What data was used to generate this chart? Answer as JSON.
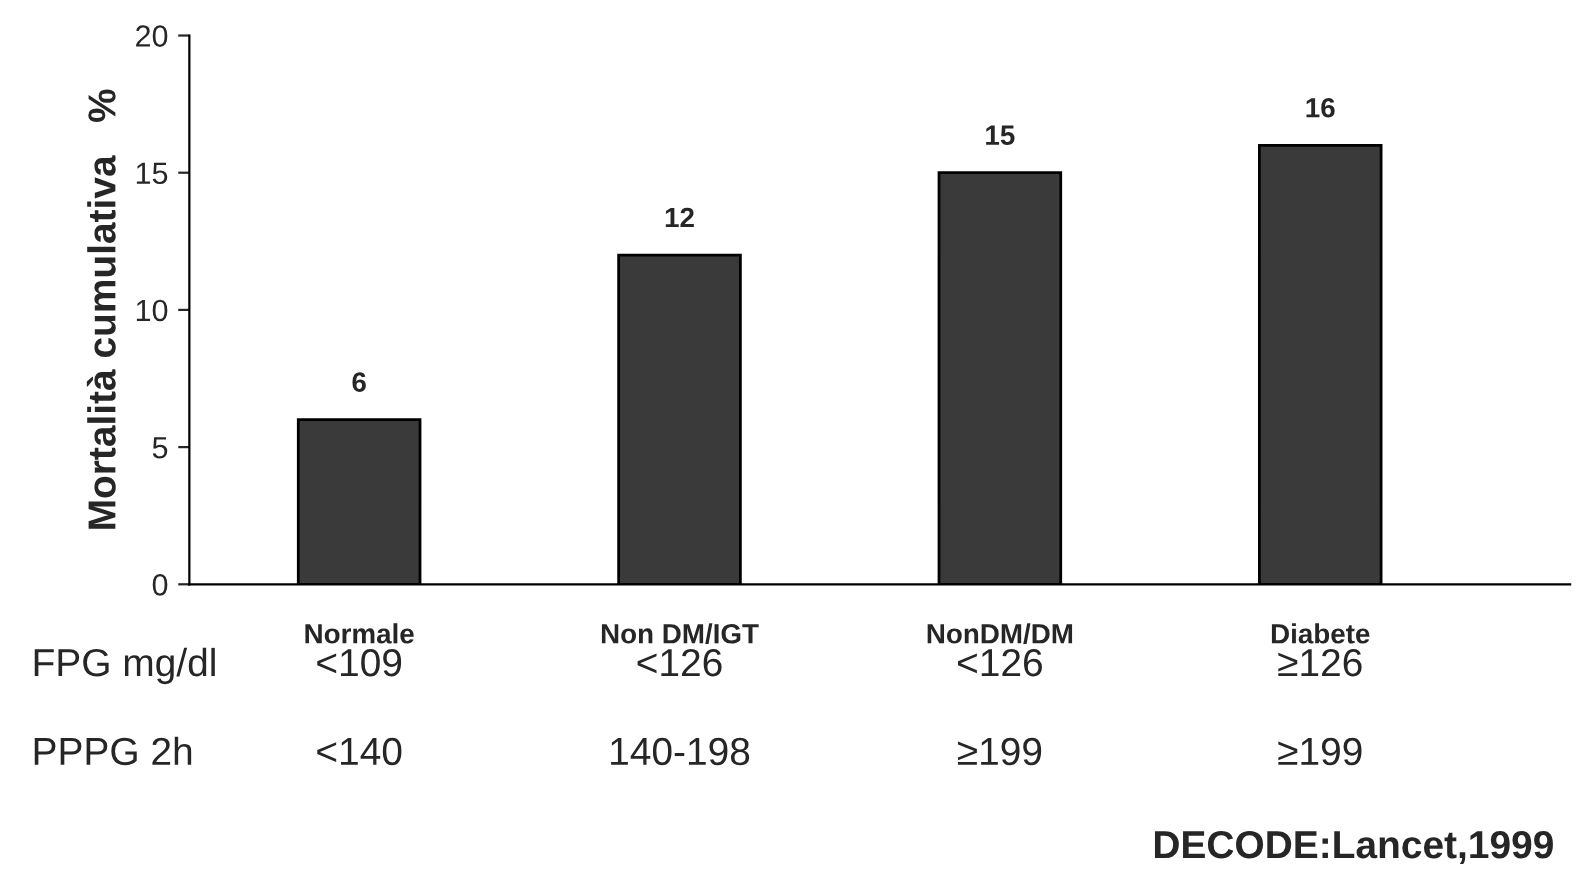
{
  "chart_data": {
    "type": "bar",
    "ylabel": "Mortalità cumulativa   %",
    "categories": [
      "Normale",
      "Non DM/IGT",
      "NonDM/DM",
      "Diabete"
    ],
    "values": [
      6,
      12,
      15,
      16
    ],
    "color": "#3a3a3a",
    "ylim": [
      0,
      20
    ],
    "yticks": [
      0,
      5,
      10,
      15,
      20
    ],
    "grid": false,
    "legend": false,
    "data_labels": true,
    "annotations": [
      "FPG mg/dl",
      "<109",
      "<126",
      "<126",
      "≥126",
      "PPPG 2h",
      "<140",
      "140-198",
      "≥199",
      "≥199",
      "DECODE:Lancet,1999"
    ]
  }
}
